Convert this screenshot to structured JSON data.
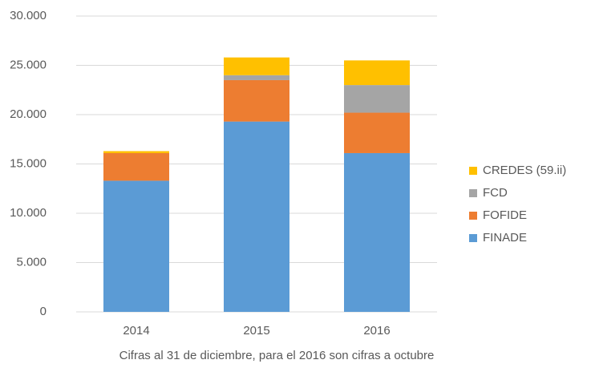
{
  "chart_data": {
    "type": "stacked_bar",
    "categories": [
      "2014",
      "2015",
      "2016"
    ],
    "series": [
      {
        "name": "FINADE",
        "color": "#5b9bd5",
        "values": [
          13300,
          19300,
          16100
        ]
      },
      {
        "name": "FOFIDE",
        "color": "#ed7d31",
        "values": [
          2800,
          4200,
          4100
        ]
      },
      {
        "name": "FCD",
        "color": "#a5a5a5",
        "values": [
          0,
          500,
          2800
        ]
      },
      {
        "name": "CREDES (59.ii)",
        "color": "#ffc000",
        "values": [
          200,
          1800,
          2500
        ]
      }
    ],
    "ylim": [
      0,
      30000
    ],
    "yticks": [
      0,
      {
        "value": 5000,
        "label": "5.000"
      },
      {
        "value": 10000,
        "label": "10.000"
      },
      {
        "value": 15000,
        "label": "15.000"
      },
      {
        "value": 20000,
        "label": "20.000"
      },
      {
        "value": 25000,
        "label": "25.000"
      },
      {
        "value": 30000,
        "label": "30.000"
      }
    ],
    "grid": true,
    "legend": "right",
    "note": "Cifras al 31 de diciembre, para el 2016 son cifras a octubre"
  }
}
